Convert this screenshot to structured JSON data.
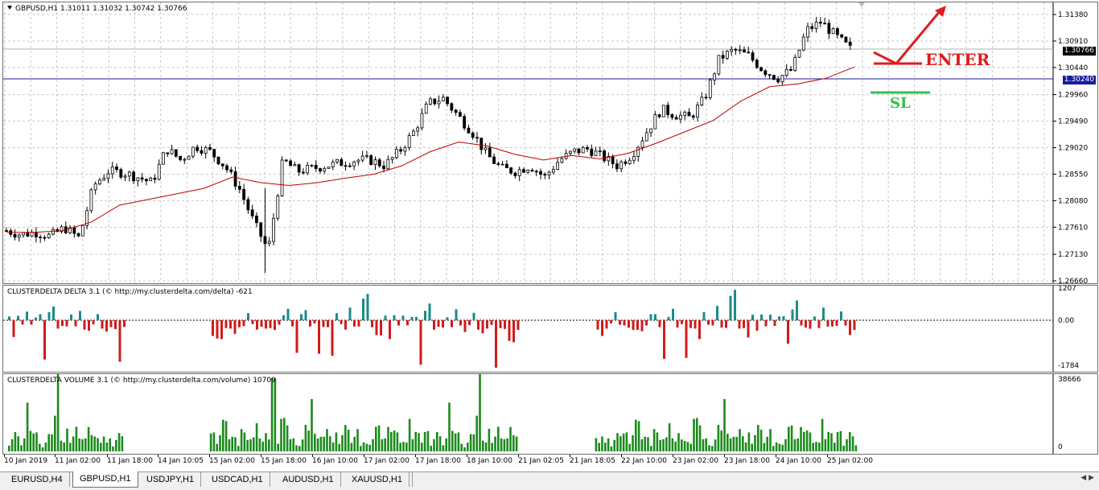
{
  "main_chart": {
    "title": "GBPUSD,H1  1.31011  1.31032  1.30742  1.30766",
    "symbol": "GBPUSD",
    "timeframe": "H1",
    "price_labels": [
      "1.31380",
      "1.30910",
      "1.30440",
      "1.29960",
      "1.29490",
      "1.29020",
      "1.28550",
      "1.28080",
      "1.27610",
      "1.27130",
      "1.26660"
    ],
    "bid_tag": "1.30766",
    "level_tag": "1.30240",
    "annotation_enter": "ENTER",
    "annotation_sl": "SL",
    "colors": {
      "enter": "#e11b1b",
      "sl": "#31c04d",
      "ma": "#c00000",
      "level_line": "#1a1aa0",
      "bid_tag_bg": "#000000",
      "level_tag_bg": "#1a1aa0"
    }
  },
  "delta_indicator": {
    "title": "CLUSTERDELTA DELTA 3.1 (© http://my.clusterdelta.com/delta) -621",
    "scale_labels": [
      "1207",
      "0.00",
      "-1784"
    ],
    "colors": {
      "positive": "#1d8a8a",
      "negative": "#d11a1a"
    }
  },
  "volume_indicator": {
    "title": "CLUSTERDELTA VOLUME 3.1 (© http://my.clusterdelta.com/volume) 10709",
    "scale_labels": [
      "38666",
      "0"
    ],
    "colors": {
      "bars": "#1c8a1c"
    }
  },
  "time_axis": [
    "10 Jan 2019",
    "11 Jan 02:00",
    "11 Jan 18:00",
    "14 Jan 10:05",
    "15 Jan 02:00",
    "15 Jan 18:00",
    "16 Jan 10:00",
    "17 Jan 02:00",
    "17 Jan 18:00",
    "18 Jan 10:00",
    "21 Jan 02:05",
    "21 Jan 18:05",
    "22 Jan 10:00",
    "23 Jan 02:00",
    "23 Jan 18:00",
    "24 Jan 10:00",
    "25 Jan 02:00"
  ],
  "tabs": [
    "EURUSD,H4",
    "GBPUSD,H1",
    "USDJPY,H1",
    "USDCAD,H1",
    "AUDUSD,H1",
    "XAUUSD,H1"
  ],
  "active_tab": "GBPUSD,H1",
  "chart_data": {
    "type": "candlestick",
    "series_name": "GBPUSD,H1",
    "ylim": [
      1.2666,
      1.3138
    ],
    "close_path": [
      1.2755,
      1.2748,
      1.2752,
      1.2745,
      1.276,
      1.2742,
      1.2835,
      1.286,
      1.2858,
      1.285,
      1.284,
      1.29,
      1.288,
      1.2905,
      1.2895,
      1.287,
      1.283,
      1.277,
      1.272,
      1.288,
      1.286,
      1.2865,
      1.287,
      1.2875,
      1.288,
      1.288,
      1.287,
      1.2895,
      1.293,
      1.298,
      1.299,
      1.296,
      1.293,
      1.289,
      1.2865,
      1.286,
      1.287,
      1.285,
      1.288,
      1.2895,
      1.29,
      1.2885,
      1.287,
      1.289,
      1.293,
      1.297,
      1.296,
      1.2955,
      1.299,
      1.306,
      1.3075,
      1.3065,
      1.304,
      1.3025,
      1.304,
      1.311,
      1.3125,
      1.31,
      1.3077
    ],
    "moving_average": [
      1.2752,
      1.2752,
      1.2755,
      1.277,
      1.28,
      1.281,
      1.282,
      1.283,
      1.285,
      1.284,
      1.2835,
      1.284,
      1.2848,
      1.2855,
      1.287,
      1.2895,
      1.2912,
      1.2905,
      1.289,
      1.288,
      1.2888,
      1.2882,
      1.2892,
      1.291,
      1.293,
      1.295,
      1.2985,
      1.301,
      1.3015,
      1.3025,
      1.3045
    ],
    "delta_values": [
      250,
      -600,
      200,
      -250,
      300,
      -180,
      150,
      200,
      -1500,
      400,
      900,
      -300,
      -250,
      -350,
      200,
      -250,
      500,
      -300,
      -400,
      -200,
      400,
      -300,
      -500,
      -400,
      -300,
      -1700,
      -350,
      -500,
      -700,
      -900,
      -500,
      -300,
      -600,
      -400,
      -200,
      300,
      -200,
      -300,
      -250,
      -400,
      -500,
      -350,
      -200,
      300,
      400,
      -250,
      -1700,
      200,
      400,
      -300,
      -200,
      -1200,
      -300,
      -400,
      -1200,
      300,
      -200,
      -300,
      500,
      -300,
      -400,
      800,
      1200,
      -400,
      -500,
      -621
    ],
    "volume_values": [
      6000,
      9000,
      11000,
      7000,
      5000,
      8000,
      24000,
      19000,
      12000,
      10000,
      8000,
      3000,
      5000,
      8000,
      14000,
      22000,
      38666,
      10000,
      6000,
      12000,
      9000,
      11000,
      14000,
      6000,
      10000,
      8000,
      12000,
      15000,
      10000,
      7000,
      9000,
      11000,
      5000,
      6000,
      4000,
      7000,
      9000,
      14000,
      12000,
      10000,
      8000,
      12000,
      18000,
      14000,
      10000,
      9000,
      7000,
      5000,
      15000,
      10000,
      12000,
      9000,
      8000,
      13000,
      10709
    ]
  }
}
